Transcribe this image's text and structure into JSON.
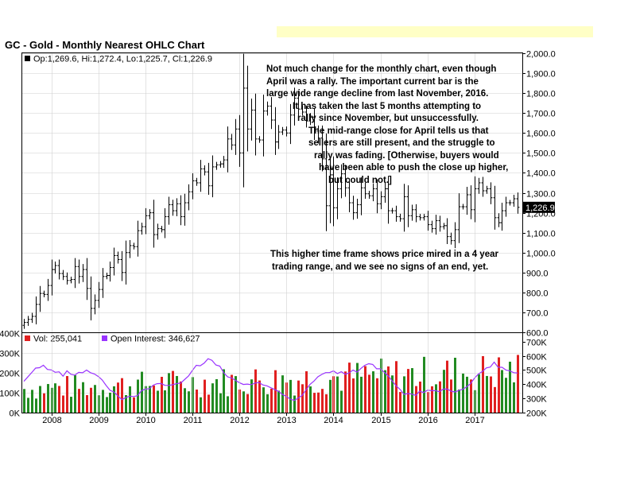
{
  "title": "GC - Gold - Monthly Nearest OHLC Chart",
  "price_legend": "Op:1,269.6, Hi:1,272.4, Lo:1,225.7, Cl:1,226.9",
  "volume_legend": {
    "vol": "Vol: 255,041",
    "oi": "Open Interest: 346,627"
  },
  "last_price_label": "1,226.9",
  "annotations": {
    "top": [
      "Not much change for the monthly chart, even though",
      "April was a rally.  The important current bar is the",
      "large wide range decline from last November, 2016.",
      "It has taken the last 5 months attempting to",
      "rally since November, but unsuccessfully.",
      "The mid-range close for April tells us that",
      "sellers are still present, and the struggle to",
      "rally was fading.  [Otherwise, buyers would",
      "have been able to push the close up higher,",
      "but could not.]"
    ],
    "bottom": [
      "This higher time frame shows price mired in a  4 year",
      "trading range, and we see no signs of an end, yet."
    ]
  },
  "colors": {
    "up_volume": "#228B22",
    "down_volume": "#e02020",
    "open_interest": "#9933ff",
    "price_bars": "#000000",
    "grid": "#d0d0d0",
    "last_price_bg": "#000000"
  },
  "chart_data": {
    "type": "ohlc",
    "price_axis": {
      "ticks": [
        "600.0",
        "700.0",
        "800.0",
        "900.0",
        "1,000.0",
        "1,100.0",
        "1,200.0",
        "1,300.0",
        "1,400.0",
        "1,500.0",
        "1,600.0",
        "1,700.0",
        "1,800.0",
        "1,900.0",
        "2,000.0"
      ],
      "ylim": [
        600,
        2000
      ]
    },
    "volume_axis_left": {
      "ticks": [
        "0K",
        "100K",
        "200K",
        "300K",
        "400K"
      ],
      "ylim": [
        0,
        400000
      ]
    },
    "oi_axis_right": {
      "ticks": [
        "200K",
        "300K",
        "400K",
        "500K",
        "600K",
        "700K"
      ],
      "ylim": [
        200000,
        760000
      ]
    },
    "x_axis": {
      "ticks": [
        "2008",
        "2009",
        "2010",
        "2011",
        "2012",
        "2013",
        "2014",
        "2015",
        "2016",
        "2017"
      ]
    },
    "series_start": "2007-06",
    "monthly_close": [
      650,
      665,
      680,
      740,
      795,
      790,
      835,
      915,
      935,
      895,
      880,
      860,
      865,
      930,
      880,
      915,
      820,
      720,
      760,
      815,
      880,
      885,
      925,
      985,
      965,
      900,
      1000,
      1035,
      1030,
      1110,
      1130,
      1185,
      1200,
      1090,
      1120,
      1115,
      1180,
      1240,
      1210,
      1245,
      1180,
      1250,
      1305,
      1360,
      1350,
      1420,
      1405,
      1335,
      1430,
      1440,
      1445,
      1465,
      1570,
      1540,
      1620,
      1500,
      1825,
      1620,
      1715,
      1570,
      1565,
      1710,
      1735,
      1665,
      1555,
      1605,
      1615,
      1600,
      1690,
      1775,
      1720,
      1705,
      1660,
      1680,
      1610,
      1575,
      1470,
      1235,
      1390,
      1225,
      1320,
      1395,
      1325,
      1250,
      1200,
      1240,
      1325,
      1295,
      1285,
      1320,
      1245,
      1280,
      1320,
      1210,
      1210,
      1180,
      1170,
      1280,
      1185,
      1215,
      1180,
      1175,
      1180,
      1140,
      1120,
      1160,
      1130,
      1135,
      1080,
      1060,
      1115,
      1230,
      1230,
      1290,
      1215,
      1320,
      1350,
      1310,
      1320,
      1275,
      1175,
      1150,
      1210,
      1250,
      1250,
      1270,
      1227
    ]
  }
}
